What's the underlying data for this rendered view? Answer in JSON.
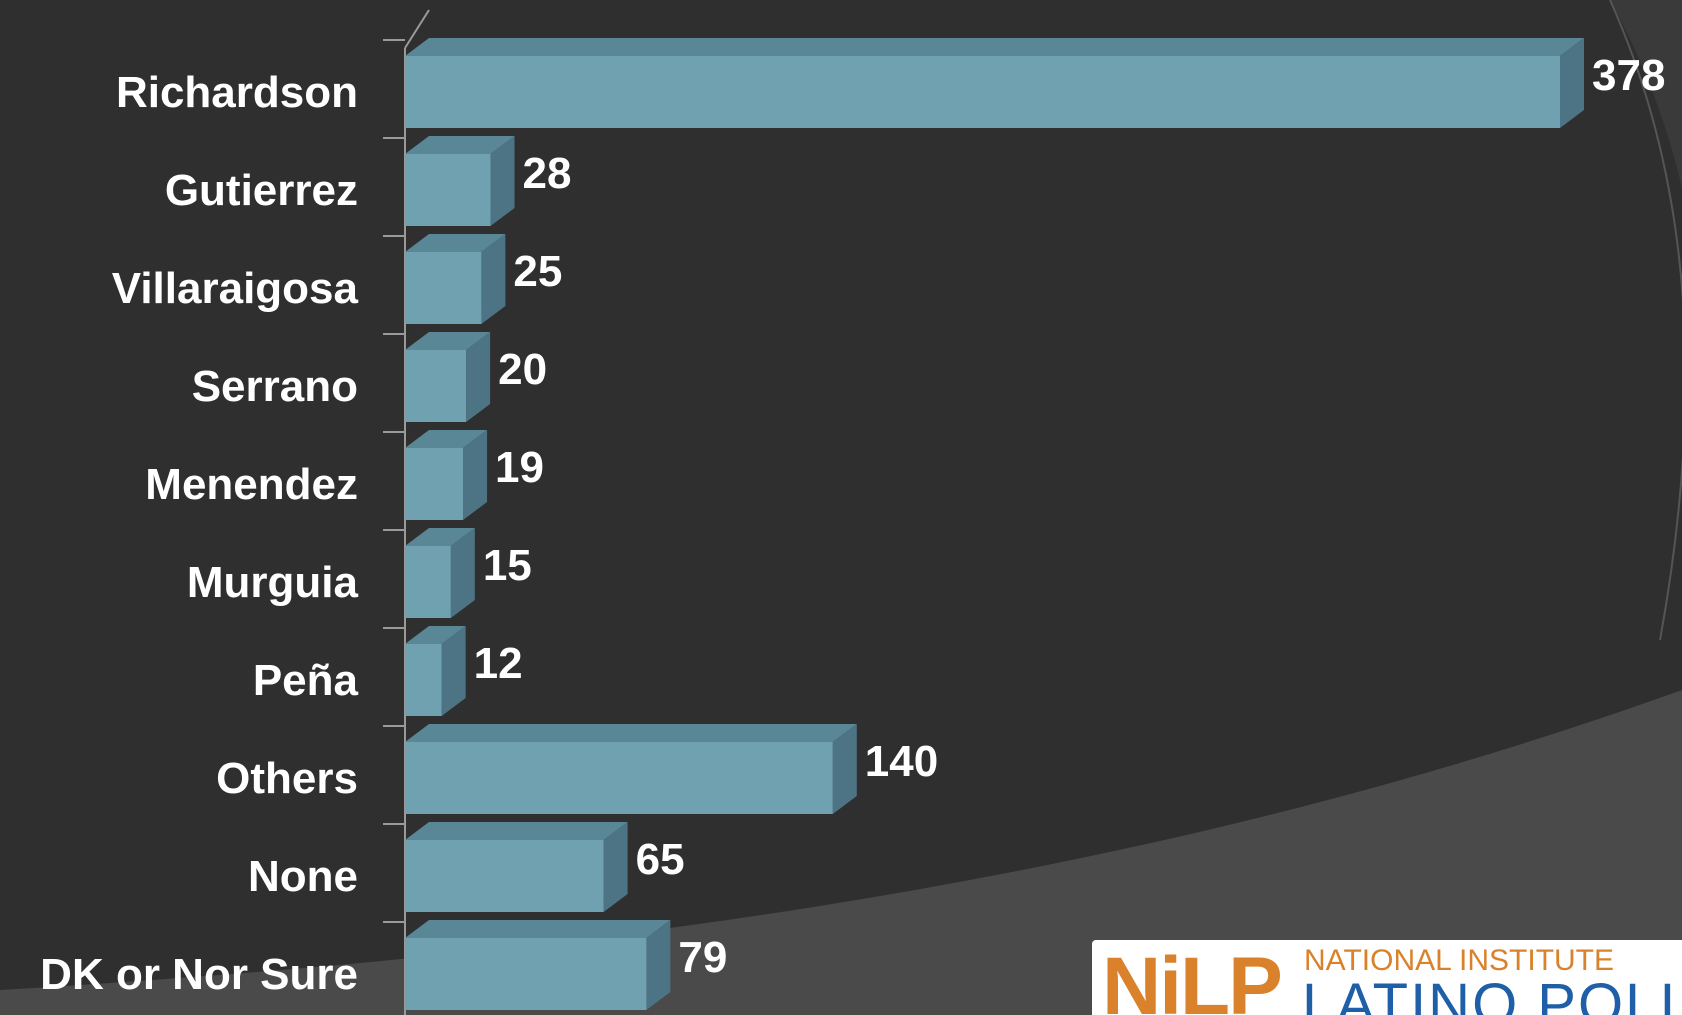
{
  "chart_data": {
    "type": "bar",
    "orientation": "horizontal",
    "style": "3d",
    "categories": [
      "Richardson",
      "Gutierrez",
      "Villaraigosa",
      "Serrano",
      "Menendez",
      "Murguia",
      "Peña",
      "Others",
      "None",
      "DK or Nor Sure"
    ],
    "values": [
      378,
      28,
      25,
      20,
      19,
      15,
      12,
      140,
      65,
      79
    ],
    "xlim": [
      0,
      378
    ],
    "grid": false,
    "legend": "none",
    "bar_color": "#6fa1b0",
    "bar_top_color": "#5a8796",
    "bar_side_color": "#4d7484",
    "label_color": "#ffffff"
  },
  "logo": {
    "mark": "NiLP",
    "line1": "NATIONAL INSTITUTE",
    "line2": "LATINO POLI"
  },
  "colors": {
    "background": "#2f2f2f",
    "arc": "#3a3a3a",
    "lower_band": "#4a4a4a",
    "logo_orange": "#d9822b",
    "logo_blue": "#1f5fa8"
  }
}
